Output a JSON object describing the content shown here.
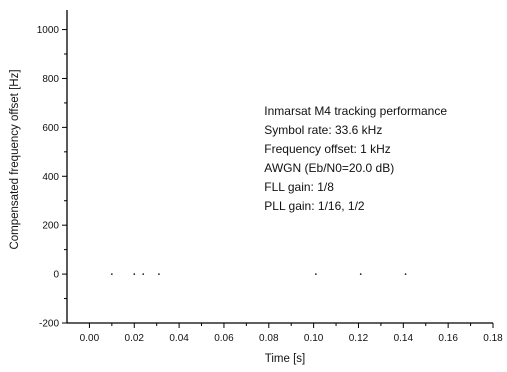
{
  "chart_data": {
    "type": "scatter",
    "xlabel": "Time [s]",
    "ylabel": "Compensated frequency offset [Hz]",
    "xlim": [
      -0.01,
      0.18
    ],
    "ylim": [
      -200,
      1080
    ],
    "x_ticks": [
      0.0,
      0.02,
      0.04,
      0.06,
      0.08,
      0.1,
      0.12,
      0.14,
      0.16,
      0.18
    ],
    "x_tick_labels": [
      "0.00",
      "0.02",
      "0.04",
      "0.06",
      "0.08",
      "0.10",
      "0.12",
      "0.14",
      "0.16",
      "0.18"
    ],
    "y_ticks": [
      -200,
      0,
      200,
      400,
      600,
      800,
      1000
    ],
    "y_tick_labels": [
      "-200",
      "0",
      "200",
      "400",
      "600",
      "800",
      "1000"
    ],
    "annotation_lines": [
      "Inmarsat M4 tracking performance",
      "Symbol rate: 33.6 kHz",
      "Frequency offset: 1 kHz",
      "AWGN (Eb/N0=20.0 dB)",
      "FLL gain: 1/8",
      "PLL gain: 1/16, 1/2"
    ],
    "annotation_anchor_data": [
      0.078,
      650
    ],
    "series": [
      {
        "x": [
          0.01,
          0.02,
          0.024,
          0.031,
          0.101,
          0.121,
          0.141
        ],
        "y": [
          0,
          0,
          0,
          0,
          0,
          0,
          0
        ]
      }
    ],
    "colors": {
      "axis": "#000000",
      "points": "#000000",
      "text": "#111111"
    }
  }
}
